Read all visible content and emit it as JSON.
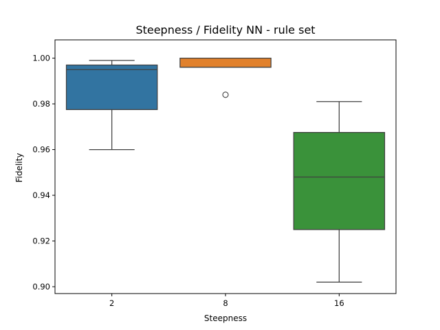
{
  "chart_data": {
    "type": "box",
    "title": "Steepness / Fidelity NN - rule set",
    "xlabel": "Steepness",
    "ylabel": "Fidelity",
    "ylim": [
      0.897,
      1.008
    ],
    "yticks": [
      0.9,
      0.92,
      0.94,
      0.96,
      0.98,
      1.0
    ],
    "ytick_labels": [
      "0.90",
      "0.92",
      "0.94",
      "0.96",
      "0.98",
      "1.00"
    ],
    "categories": [
      "2",
      "8",
      "16"
    ],
    "grid": false,
    "boxes": [
      {
        "category": "2",
        "color": "#3274a1",
        "whisker_low": 0.96,
        "q1": 0.9775,
        "median": 0.995,
        "q3": 0.997,
        "whisker_high": 0.999,
        "outliers": []
      },
      {
        "category": "8",
        "color": "#e1812c",
        "whisker_low": 0.996,
        "q1": 0.996,
        "median": 0.996,
        "q3": 1.0,
        "whisker_high": 1.0,
        "outliers": [
          0.984
        ]
      },
      {
        "category": "16",
        "color": "#3a923a",
        "whisker_low": 0.902,
        "q1": 0.925,
        "median": 0.948,
        "q3": 0.9675,
        "whisker_high": 0.981,
        "outliers": []
      }
    ]
  }
}
